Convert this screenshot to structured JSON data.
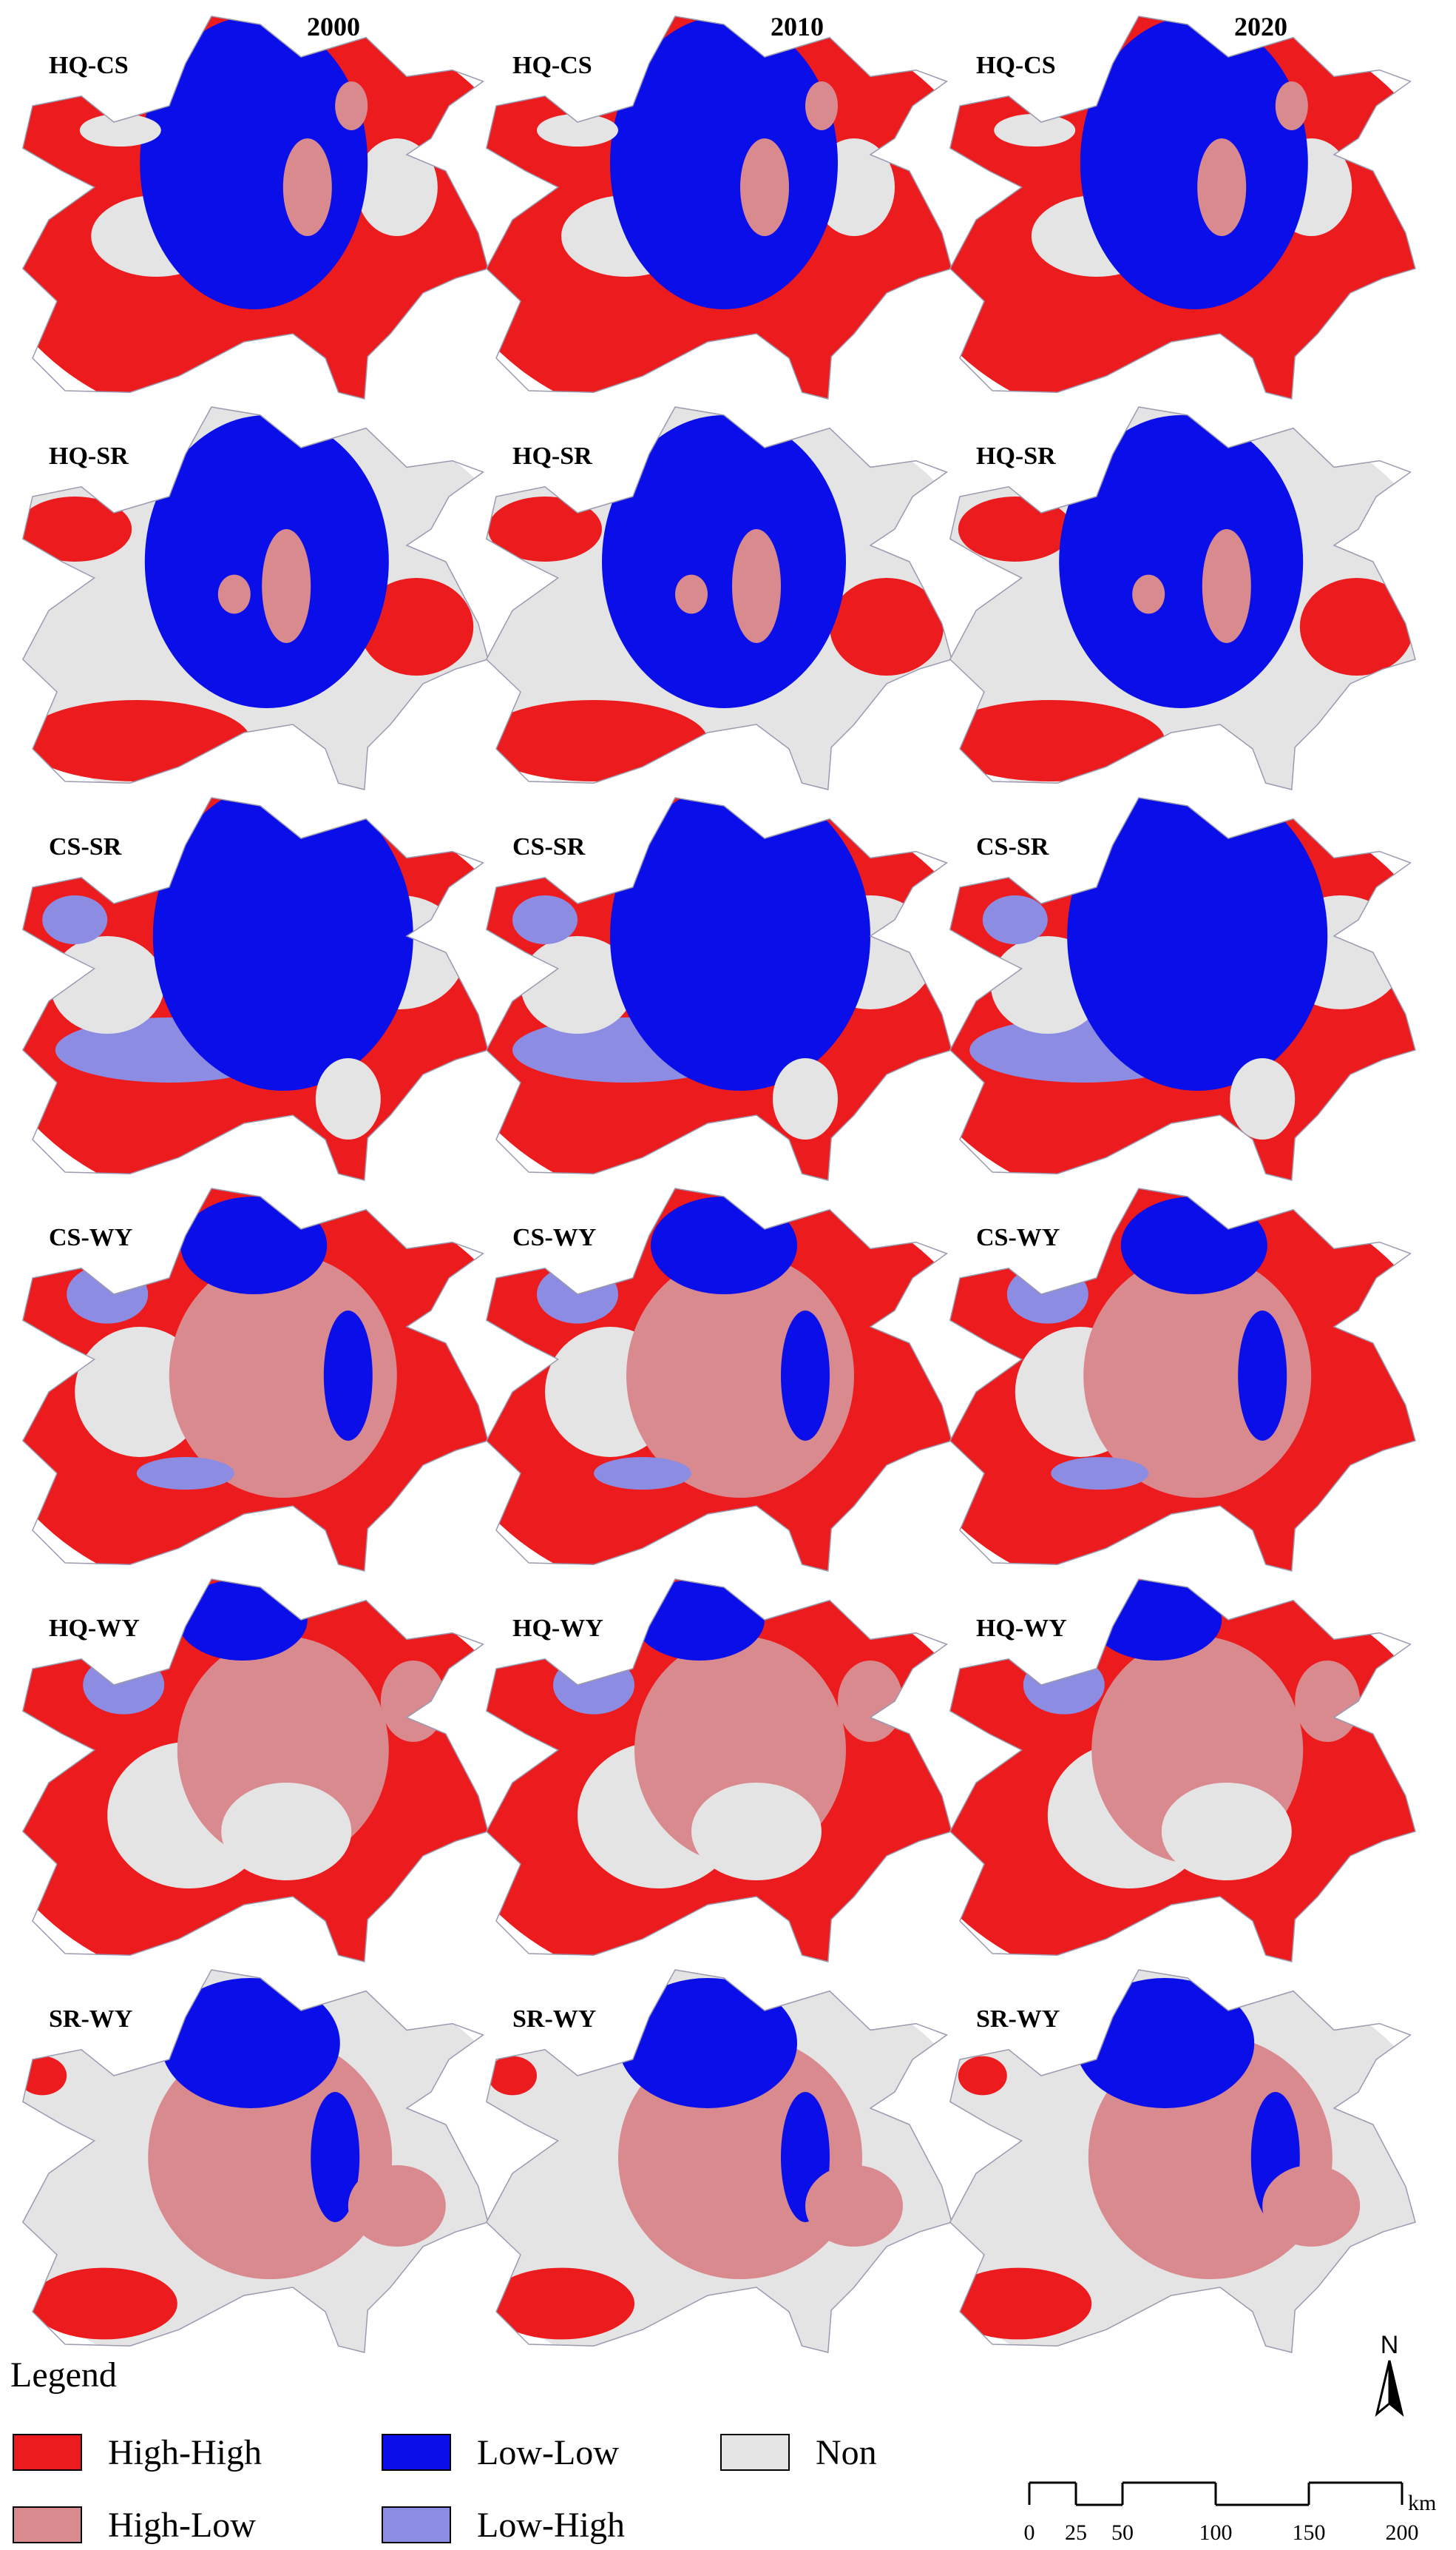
{
  "columns": [
    "2000",
    "2010",
    "2020"
  ],
  "rows": [
    "HQ-CS",
    "HQ-SR",
    "CS-SR",
    "CS-WY",
    "HQ-WY",
    "SR-WY"
  ],
  "legend": {
    "title": "Legend",
    "items": [
      {
        "label": "High-High",
        "color": "#ec1b1e"
      },
      {
        "label": "High-Low",
        "color": "#d98a8f"
      },
      {
        "label": "Low-Low",
        "color": "#0a0ee8"
      },
      {
        "label": "Low-High",
        "color": "#8c8ce2"
      },
      {
        "label": "Non",
        "color": "#e4e4e4"
      }
    ]
  },
  "north_label": "N",
  "scale_bar": {
    "ticks": [
      0,
      25,
      50,
      100,
      150,
      200
    ],
    "unit": "km"
  }
}
